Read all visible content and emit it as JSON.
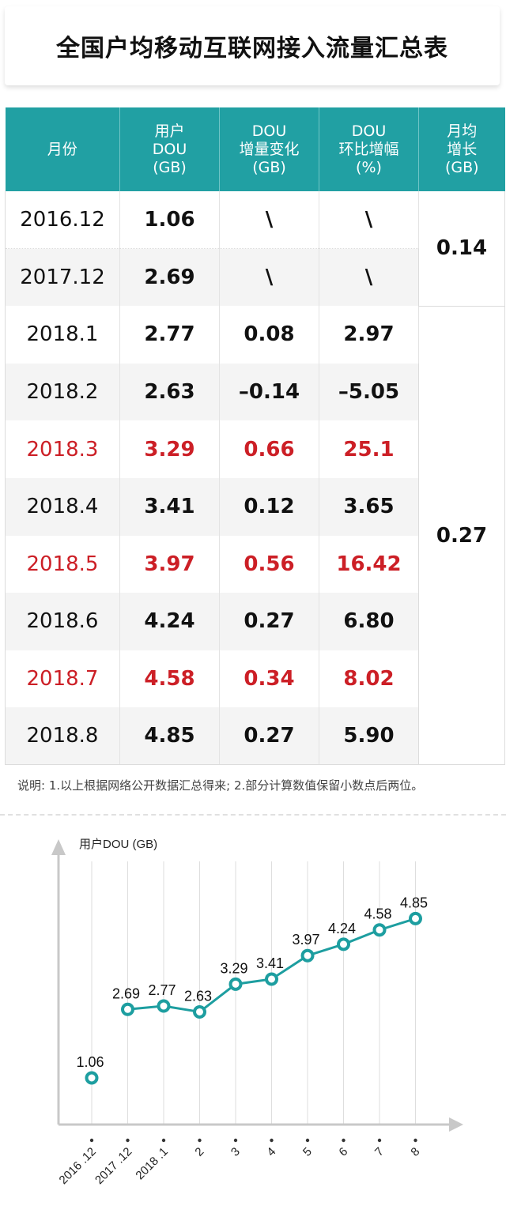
{
  "title": "全国户均移动互联网接入流量汇总表",
  "table": {
    "headers": [
      [
        "月份"
      ],
      [
        "用户",
        "DOU",
        "(GB)"
      ],
      [
        "DOU",
        "增量变化",
        "(GB)"
      ],
      [
        "DOU",
        "环比增幅",
        "(%)"
      ],
      [
        "月均",
        "增长",
        "(GB)"
      ]
    ],
    "rows": [
      {
        "month": "2016.12",
        "dou": "1.06",
        "delta": "\\",
        "pct": "\\",
        "highlight": false
      },
      {
        "month": "2017.12",
        "dou": "2.69",
        "delta": "\\",
        "pct": "\\",
        "highlight": false
      },
      {
        "month": "2018.1",
        "dou": "2.77",
        "delta": "0.08",
        "pct": "2.97",
        "highlight": false
      },
      {
        "month": "2018.2",
        "dou": "2.63",
        "delta": "–0.14",
        "pct": "–5.05",
        "highlight": false
      },
      {
        "month": "2018.3",
        "dou": "3.29",
        "delta": "0.66",
        "pct": "25.1",
        "highlight": true
      },
      {
        "month": "2018.4",
        "dou": "3.41",
        "delta": "0.12",
        "pct": "3.65",
        "highlight": false
      },
      {
        "month": "2018.5",
        "dou": "3.97",
        "delta": "0.56",
        "pct": "16.42",
        "highlight": true
      },
      {
        "month": "2018.6",
        "dou": "4.24",
        "delta": "0.27",
        "pct": "6.80",
        "highlight": false
      },
      {
        "month": "2018.7",
        "dou": "4.58",
        "delta": "0.34",
        "pct": "8.02",
        "highlight": true
      },
      {
        "month": "2018.8",
        "dou": "4.85",
        "delta": "0.27",
        "pct": "5.90",
        "highlight": false
      }
    ],
    "growth": [
      {
        "value": "0.14",
        "rows": 2
      },
      {
        "value": "0.27",
        "rows": 8
      }
    ]
  },
  "note": "说明: 1.以上根据网络公开数据汇总得来; 2.部分计算数值保留小数点后两位。",
  "colors": {
    "header_bg": "#21a0a3",
    "highlight": "#cc1f26",
    "line": "#1d9ea0",
    "axis": "#c8c8c8"
  },
  "chart_data": {
    "type": "line",
    "ylabel": "用户DOU (GB)",
    "xlabel": "",
    "categories": [
      "2016 .12",
      "2017 .12",
      "2018 .1",
      "2",
      "3",
      "4",
      "5",
      "6",
      "7",
      "8"
    ],
    "values": [
      1.06,
      2.69,
      2.77,
      2.63,
      3.29,
      3.41,
      3.97,
      4.24,
      4.58,
      4.85
    ],
    "data_labels": [
      "1.06",
      "2.69",
      "2.77",
      "2.63",
      "3.29",
      "3.41",
      "3.97",
      "4.24",
      "4.58",
      "4.85"
    ],
    "connected_from_index": 1,
    "grid": true
  }
}
